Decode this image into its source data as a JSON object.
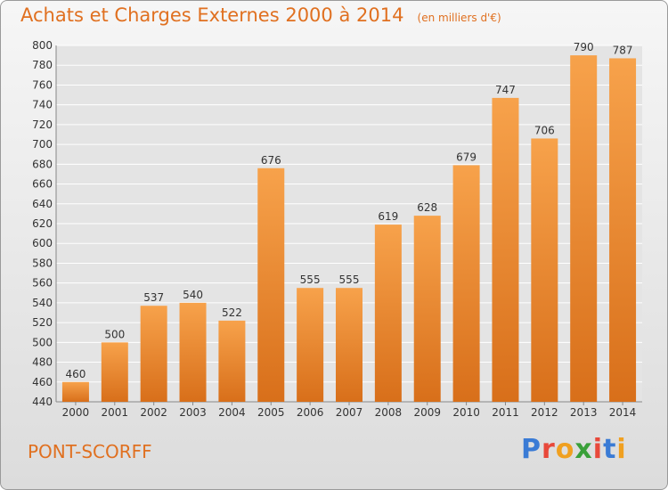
{
  "header": {
    "title": "Achats et Charges Externes 2000 à 2014",
    "unit": "(en milliers d'€)"
  },
  "footer": {
    "commune": "PONT-SCORFF",
    "brand_letters": [
      "P",
      "r",
      "o",
      "x",
      "i",
      "t",
      "i"
    ],
    "brand_colors": [
      "#3a7bd5",
      "#e8483a",
      "#f0a020",
      "#3aa03a",
      "#e8483a",
      "#3a7bd5",
      "#f0a020"
    ]
  },
  "colors": {
    "bar_light": "#f7a24b",
    "bar_dark": "#d86f1a",
    "title": "#e07020",
    "grid": "#ffffff",
    "plot_bg": "#e4e4e4"
  },
  "chart_data": {
    "type": "bar",
    "title": "Achats et Charges Externes 2000 à 2014",
    "subtitle": "(en milliers d'€)",
    "xlabel": "",
    "ylabel": "",
    "categories": [
      "2000",
      "2001",
      "2002",
      "2003",
      "2004",
      "2005",
      "2006",
      "2007",
      "2008",
      "2009",
      "2010",
      "2011",
      "2012",
      "2013",
      "2014"
    ],
    "values": [
      460,
      500,
      537,
      540,
      522,
      676,
      555,
      555,
      619,
      628,
      679,
      747,
      706,
      790,
      787
    ],
    "ylim": [
      440,
      800
    ],
    "ytick_step": 20,
    "grid": true,
    "legend": "none"
  }
}
